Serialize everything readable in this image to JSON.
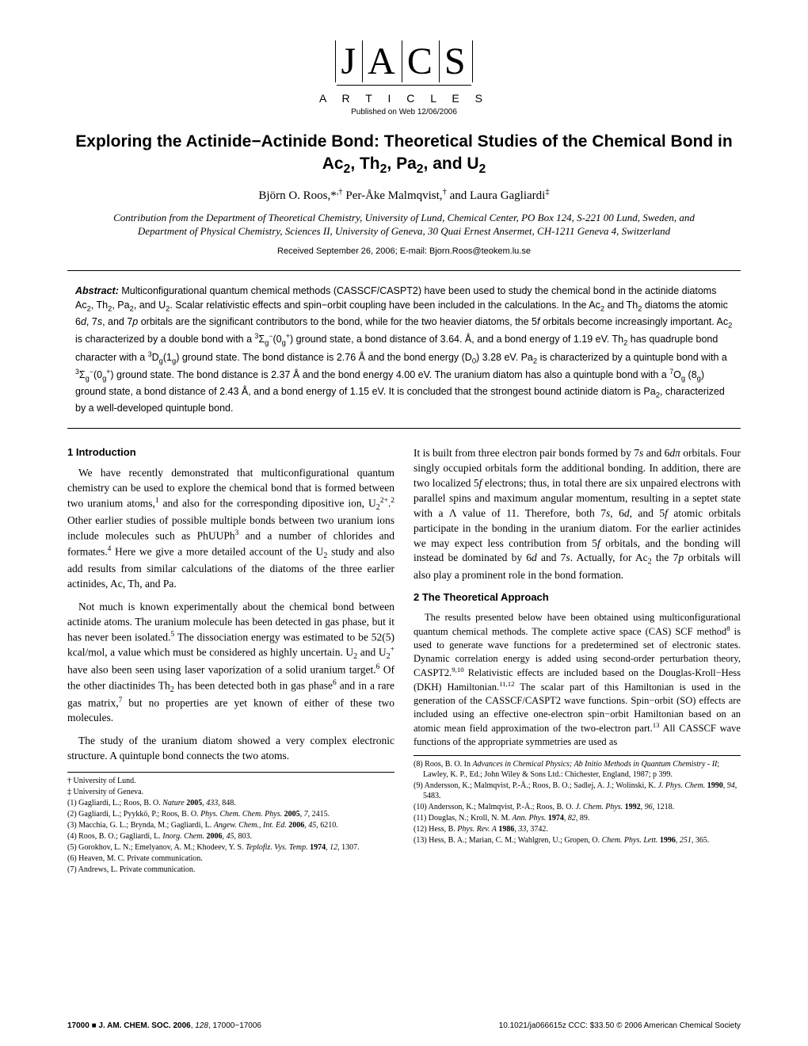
{
  "logo_letters": "J|A|C|S",
  "articles_label": "A R T I C L E S",
  "pub_date": "Published on Web 12/06/2006",
  "title_html": "Exploring the Actinide−Actinide Bond: Theoretical Studies of the Chemical Bond in Ac<sub>2</sub>, Th<sub>2</sub>, Pa<sub>2</sub>, and U<sub>2</sub>",
  "authors_html": "Björn O. Roos,*<sup>,†</sup> Per-Åke Malmqvist,<sup>†</sup> and Laura Gagliardi<sup>‡</sup>",
  "affiliation": "Contribution from the Department of Theoretical Chemistry, University of Lund, Chemical Center, PO Box 124, S-221 00 Lund, Sweden, and Department of Physical Chemistry, Sciences II, University of Geneva, 30 Quai Ernest Ansermet, CH-1211 Geneva 4, Switzerland",
  "received": "Received September 26, 2006;  E-mail: Bjorn.Roos@teokem.lu.se",
  "abstract_label": "Abstract:",
  "abstract_html": "Multiconfigurational quantum chemical methods (CASSCF/CASPT2) have been used to study the chemical bond in the actinide diatoms Ac<sub>2</sub>, Th<sub>2</sub>, Pa<sub>2</sub>, and U<sub>2</sub>. Scalar relativistic effects and spin−orbit coupling have been included in the calculations. In the Ac<sub>2</sub> and Th<sub>2</sub> diatoms the atomic 6<i>d</i>, 7<i>s</i>, and 7<i>p</i> orbitals are the significant contributors to the bond, while for the two heavier diatoms, the 5<i>f</i> orbitals become increasingly important. Ac<sub>2</sub> is characterized by a double bond with a <sup>3</sup>Σ<sub>g</sub><sup>−</sup>(0<sub>g</sub><sup>+</sup>) ground state, a bond distance of 3.64. Å, and a bond energy of 1.19 eV. Th<sub>2</sub> has quadruple bond character with a <sup>3</sup>D<sub>g</sub>(1<sub>g</sub>) ground state. The bond distance is 2.76 Å and the bond energy (D<sub>0</sub>) 3.28 eV. Pa<sub>2</sub> is characterized by a quintuple bond with a <sup>3</sup>Σ<sub>g</sub><sup>−</sup>(0<sub>g</sub><sup>+</sup>) ground state. The bond distance is 2.37 Å and the bond energy 4.00 eV. The uranium diatom has also a quintuple bond with a <sup>7</sup>O<sub>g</sub> (8<sub>g</sub>) ground state, a bond distance of 2.43 Å, and a bond energy of 1.15 eV. It is concluded that the strongest bound actinide diatom is Pa<sub>2</sub>, characterized by a well-developed quintuple bond.",
  "sec1_head": "1 Introduction",
  "sec1_p1_html": "We have recently demonstrated that multiconfigurational quantum chemistry can be used to explore the chemical bond that is formed between two uranium atoms,<sup>1</sup> and also for the corresponding dipositive ion, U<sub>2</sub><sup>2+</sup>.<sup>2</sup> Other earlier studies of possible multiple bonds between two uranium ions include molecules such as PhUUPh<sup>3</sup> and a number of chlorides and formates.<sup>4</sup> Here we give a more detailed account of the U<sub>2</sub> study and also add results from similar calculations of the diatoms of the three earlier actinides, Ac, Th, and Pa.",
  "sec1_p2_html": "Not much is known experimentally about the chemical bond between actinide atoms. The uranium molecule has been detected in gas phase, but it has never been isolated.<sup>5</sup> The dissociation energy was estimated to be 52(5) kcal/mol, a value which must be considered as highly uncertain. U<sub>2</sub> and U<sub>2</sub><sup>+</sup> have also been seen using laser vaporization of a solid uranium target.<sup>6</sup> Of the other diactinides Th<sub>2</sub> has been detected both in gas phase<sup>6</sup> and in a rare gas matrix,<sup>7</sup> but no properties are yet known of either of these two molecules.",
  "sec1_p3": "The study of the uranium diatom showed a very complex electronic structure. A quintuple bond connects the two atoms.",
  "col2_p1_html": "It is built from three electron pair bonds formed by 7<i>s</i> and 6<i>dπ</i> orbitals. Four singly occupied orbitals form the additional bonding. In addition, there are two localized 5<i>f</i> electrons; thus, in total there are six unpaired electrons with parallel spins and maximum angular momentum, resulting in a septet state with a Λ value of 11. Therefore, both 7<i>s</i>, 6<i>d</i>, and 5<i>f</i> atomic orbitals participate in the bonding in the uranium diatom. For the earlier actinides we may expect less contribution from 5<i>f</i> orbitals, and the bonding will instead be dominated by 6<i>d</i> and 7<i>s</i>. Actually, for Ac<sub>2</sub> the 7<i>p</i> orbitals will also play a prominent role in the bond formation.",
  "sec2_head": "2 The Theoretical Approach",
  "sec2_p1_html": "The results presented below have been obtained using multiconfigurational quantum chemical methods. The complete active space (CAS) SCF method<sup>8</sup> is used to generate wave functions for a predetermined set of electronic states. Dynamic correlation energy is added using second-order perturbation theory, CASPT2.<sup>9,10</sup> Relativistic effects are included based on the Douglas-Kroll−Hess (DKH) Hamiltonian.<sup>11,12</sup> The scalar part of this Hamiltonian is used in the generation of the CASSCF/CASPT2 wave functions. Spin−orbit (SO) effects are included using an effective one-electron spin−orbit Hamiltonian based on an atomic mean field approximation of the two-electron part.<sup>13</sup> All CASSCF wave functions of the appropriate symmetries are used as",
  "footnotes_left": [
    "† University of Lund.",
    "‡ University of Geneva.",
    "(1) Gagliardi, L.; Roos, B. O. <i>Nature</i> <b>2005</b>, <i>433</i>, 848.",
    "(2) Gagliardi, L.; Pyykkö, P.; Roos, B. O. <i>Phys. Chem. Chem. Phys.</i> <b>2005</b>, <i>7</i>, 2415.",
    "(3) Macchia, G. L.; Brynda, M.; Gagliardi, L. <i>Angew. Chem., Int. Ed.</i> <b>2006</b>, <i>45</i>, 6210.",
    "(4) Roos, B. O.; Gagliardi, L. <i>Inorg. Chem.</i> <b>2006</b>, <i>45</i>, 803.",
    "(5) Gorokhov, L. N.; Emelyanov, A. M.; Khodeev, Y. S. <i>Teplofiz. Vys. Temp.</i> <b>1974</b>, <i>12</i>, 1307.",
    "(6) Heaven, M. C. Private communication.",
    "(7) Andrews, L. Private communication."
  ],
  "footnotes_right": [
    "(8) Roos, B. O. In <i>Advances in Chemical Physics; Ab Initio Methods in Quantum Chemistry - II</i>; Lawley, K. P., Ed.; John Wiley & Sons Ltd.: Chichester, England, 1987; p 399.",
    "(9) Andersson, K.; Malmqvist, P.-Å.; Roos, B. O.; Sadlej, A. J.; Wolinski, K. <i>J. Phys. Chem.</i> <b>1990</b>, <i>94</i>, 5483.",
    "(10) Andersson, K.; Malmqvist, P.-Å.; Roos, B. O. <i>J. Chem. Phys.</i> <b>1992</b>, <i>96</i>, 1218.",
    "(11) Douglas, N.; Kroll, N. M. <i>Ann. Phys.</i> <b>1974</b>, <i>82</i>, 89.",
    "(12) Hess, B. <i>Phys. Rev. A</i> <b>1986</b>, <i>33</i>, 3742.",
    "(13) Hess, B. A.; Marian, C. M.; Wahlgren, U.; Gropen, O. <i>Chem. Phys. Lett.</i> <b>1996</b>, <i>251</i>, 365."
  ],
  "footer_left_html": "<b>17000 ■ J. AM. CHEM. SOC. 2006</b>, <i>128</i>, 17000−17006",
  "footer_right": "10.1021/ja066615z CCC: $33.50 © 2006 American Chemical Society"
}
